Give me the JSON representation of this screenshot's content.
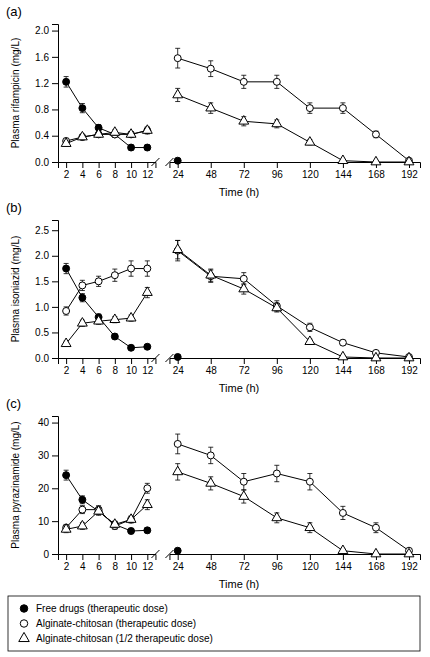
{
  "chart_data": [
    {
      "type": "line",
      "title": "(a)",
      "y_label": "Plasma rifampicin (mg/L)",
      "x_label": "Time (h)",
      "x": [
        2,
        4,
        6,
        8,
        10,
        12
      ],
      "xlim": [
        1,
        13
      ],
      "xticks": [
        2,
        4,
        6,
        8,
        10,
        12
      ],
      "ylim": [
        0,
        2.1
      ],
      "yticks": [
        {
          "value": 0,
          "label": "0.0"
        },
        0.4,
        0.8,
        1.2,
        1.6,
        {
          "value": 2,
          "label": "2.0"
        }
      ],
      "series": [
        {
          "name": "Free drugs (therapeutic dose)",
          "color": "#000000",
          "marker": "filled-circle",
          "values": [
            1.22,
            0.82,
            0.52,
            0.42,
            0.22,
            0.22
          ],
          "errors": [
            0.08,
            0.07,
            0.05,
            0.04,
            0.04,
            0.04
          ]
        },
        {
          "name": "Alginate-chitosan (therapeutic dose)",
          "color": "#000000",
          "marker": "open-circle",
          "values": [
            0.32,
            0.38,
            0.42,
            0.42,
            0.42,
            0.48
          ],
          "errors": [
            0.04,
            0.04,
            0.04,
            0.04,
            0.04,
            0.05
          ]
        },
        {
          "name": "Alginate-chitosan (1/2 therapeutic dose)",
          "color": "#000000",
          "marker": "open-triangle",
          "values": [
            0.28,
            0.38,
            0.42,
            0.45,
            0.42,
            0.48
          ],
          "errors": [
            0.04,
            0.04,
            0.04,
            0.04,
            0.04,
            0.05
          ]
        }
      ]
    },
    {
      "type": "line",
      "x": [
        24,
        48,
        72,
        96,
        120,
        144,
        168,
        192
      ],
      "xlim": [
        18,
        200
      ],
      "xticks": [
        24,
        48,
        72,
        96,
        120,
        144,
        168,
        192
      ],
      "ylim": [
        0,
        2.1
      ],
      "tick_labels": "x",
      "series": [
        {
          "color": "#000000",
          "marker": "filled-circle",
          "values": [
            0.02,
            null,
            null,
            null,
            null,
            null,
            null,
            null
          ],
          "errors": [
            0.02,
            null,
            null,
            null,
            null,
            null,
            null,
            null
          ]
        },
        {
          "color": "#000000",
          "marker": "open-circle",
          "values": [
            1.58,
            1.42,
            1.22,
            1.22,
            0.82,
            0.82,
            0.42,
            0.02
          ],
          "errors": [
            0.15,
            0.12,
            0.1,
            0.1,
            0.08,
            0.08,
            0.05,
            0.02
          ]
        },
        {
          "color": "#000000",
          "marker": "open-triangle",
          "values": [
            1.02,
            0.82,
            0.62,
            0.58,
            0.3,
            0.02,
            0.0,
            0.0
          ],
          "errors": [
            0.1,
            0.08,
            0.07,
            0.06,
            0.04,
            0.02,
            0.0,
            0.0
          ]
        }
      ]
    },
    {
      "type": "line",
      "title": "(b)",
      "y_label": "Plasma isoniazid (mg/L)",
      "x_label": "Time (h)",
      "x": [
        2,
        4,
        6,
        8,
        10,
        12
      ],
      "xlim": [
        1,
        13
      ],
      "xticks": [
        2,
        4,
        6,
        8,
        10,
        12
      ],
      "ylim": [
        0,
        2.7
      ],
      "yticks": [
        {
          "value": 0,
          "label": "0.0"
        },
        0.5,
        {
          "value": 1,
          "label": "1.0"
        },
        1.5,
        {
          "value": 2,
          "label": "2.0"
        },
        2.5
      ],
      "series": [
        {
          "color": "#000000",
          "marker": "filled-circle",
          "values": [
            1.75,
            1.18,
            0.8,
            0.42,
            0.2,
            0.22
          ],
          "errors": [
            0.1,
            0.08,
            0.06,
            0.05,
            0.04,
            0.04
          ]
        },
        {
          "color": "#000000",
          "marker": "open-circle",
          "values": [
            0.92,
            1.42,
            1.5,
            1.62,
            1.75,
            1.75
          ],
          "errors": [
            0.08,
            0.1,
            0.1,
            0.12,
            0.15,
            0.15
          ]
        },
        {
          "color": "#000000",
          "marker": "open-triangle",
          "values": [
            0.28,
            0.68,
            0.72,
            0.75,
            0.78,
            1.28
          ],
          "errors": [
            0.05,
            0.06,
            0.06,
            0.06,
            0.06,
            0.1
          ]
        }
      ]
    },
    {
      "type": "line",
      "x": [
        24,
        48,
        72,
        96,
        120,
        144,
        168,
        192
      ],
      "xlim": [
        18,
        200
      ],
      "xticks": [
        24,
        48,
        72,
        96,
        120,
        144,
        168,
        192
      ],
      "ylim": [
        0,
        2.7
      ],
      "tick_labels": "x",
      "series": [
        {
          "color": "#000000",
          "marker": "filled-circle",
          "values": [
            0.02,
            null,
            null,
            null,
            null,
            null,
            null,
            null
          ],
          "errors": [
            0.02,
            null,
            null,
            null,
            null,
            null,
            null,
            null
          ]
        },
        {
          "color": "#000000",
          "marker": "open-circle",
          "values": [
            2.1,
            1.6,
            1.55,
            1.02,
            0.6,
            0.3,
            0.1,
            0.02
          ],
          "errors": [
            0.2,
            0.12,
            0.12,
            0.1,
            0.08,
            0.05,
            0.03,
            0.02
          ]
        },
        {
          "color": "#000000",
          "marker": "open-triangle",
          "values": [
            2.12,
            1.62,
            1.35,
            0.98,
            0.32,
            0.02,
            0.0,
            0.0
          ],
          "errors": [
            0.18,
            0.12,
            0.1,
            0.08,
            0.05,
            0.02,
            0.0,
            0.0
          ]
        }
      ]
    },
    {
      "type": "line",
      "title": "(c)",
      "y_label": "Plasma pyrazinamide (mg/L)",
      "x_label": "Time (h)",
      "x": [
        2,
        4,
        6,
        8,
        10,
        12
      ],
      "xlim": [
        1,
        13
      ],
      "xticks": [
        2,
        4,
        6,
        8,
        10,
        12
      ],
      "ylim": [
        0,
        42
      ],
      "yticks": [
        0,
        10,
        20,
        30,
        40
      ],
      "series": [
        {
          "color": "#000000",
          "marker": "filled-circle",
          "values": [
            24.0,
            16.5,
            13.0,
            9.0,
            7.0,
            7.2
          ],
          "errors": [
            1.5,
            1.2,
            1.0,
            0.8,
            0.8,
            0.8
          ]
        },
        {
          "color": "#000000",
          "marker": "open-circle",
          "values": [
            8.0,
            13.5,
            13.5,
            8.5,
            10.5,
            20.0
          ],
          "errors": [
            1.0,
            1.2,
            1.2,
            1.0,
            1.0,
            1.5
          ]
        },
        {
          "color": "#000000",
          "marker": "open-triangle",
          "values": [
            7.5,
            8.5,
            13.0,
            9.0,
            10.5,
            15.0
          ],
          "errors": [
            1.0,
            1.0,
            1.2,
            1.0,
            1.0,
            1.5
          ]
        }
      ]
    },
    {
      "type": "line",
      "x": [
        24,
        48,
        72,
        96,
        120,
        144,
        168,
        192
      ],
      "xlim": [
        18,
        200
      ],
      "xticks": [
        24,
        48,
        72,
        96,
        120,
        144,
        168,
        192
      ],
      "ylim": [
        0,
        42
      ],
      "tick_labels": "x",
      "series": [
        {
          "color": "#000000",
          "marker": "filled-circle",
          "values": [
            1.0,
            null,
            null,
            null,
            null,
            null,
            null,
            null
          ],
          "errors": [
            0.5,
            null,
            null,
            null,
            null,
            null,
            null,
            null
          ]
        },
        {
          "color": "#000000",
          "marker": "open-circle",
          "values": [
            33.5,
            30.0,
            22.0,
            24.5,
            22.0,
            12.5,
            8.0,
            1.0
          ],
          "errors": [
            3.0,
            2.5,
            2.5,
            2.5,
            2.5,
            2.0,
            1.5,
            0.5
          ]
        },
        {
          "color": "#000000",
          "marker": "open-triangle",
          "values": [
            25.0,
            21.5,
            17.5,
            11.0,
            8.0,
            1.0,
            0.0,
            0.0
          ],
          "errors": [
            2.5,
            2.0,
            2.0,
            1.5,
            1.5,
            0.5,
            0.0,
            0.0
          ]
        }
      ]
    }
  ]
}
